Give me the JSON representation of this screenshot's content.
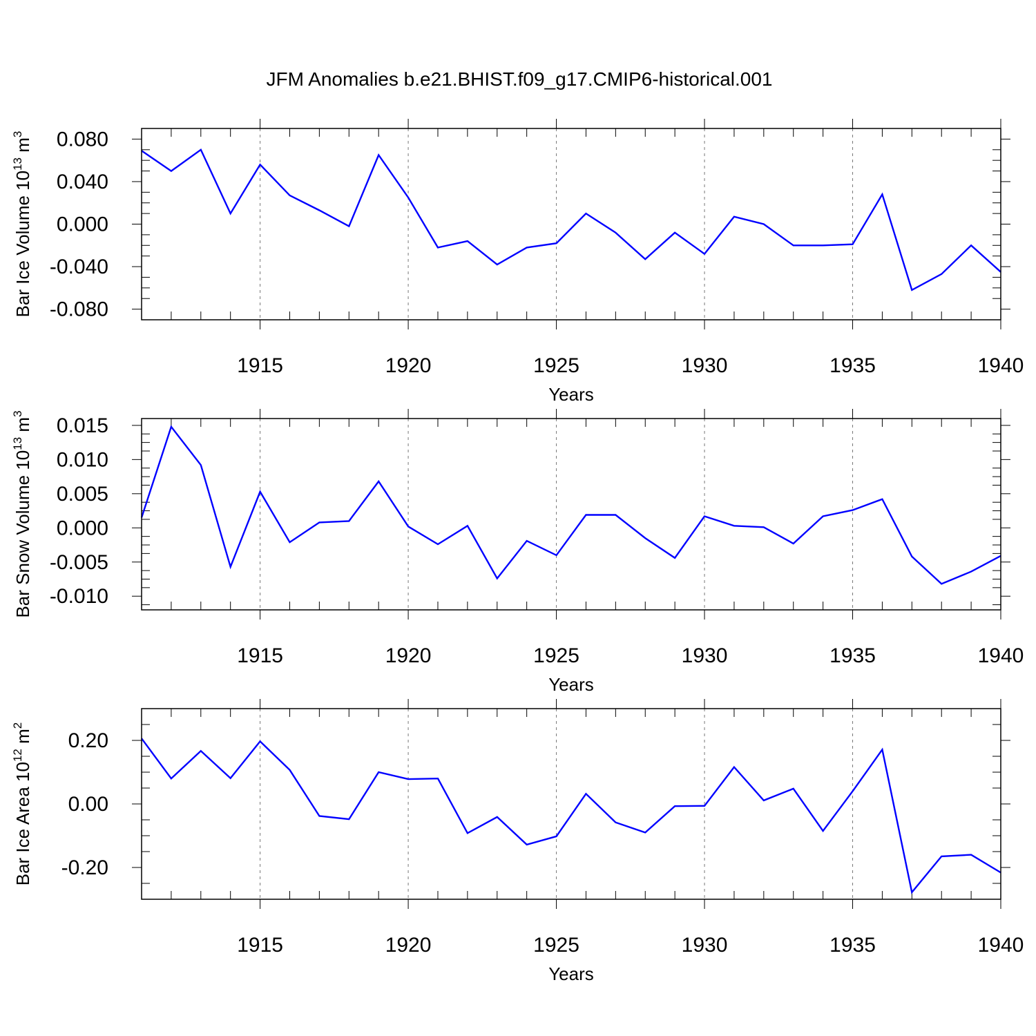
{
  "title": "JFM Anomalies b.e21.BHIST.f09_g17.CMIP6-historical.001",
  "colors": {
    "line": "#0000ff",
    "axis": "#000000",
    "grid": "#777777",
    "background": "#ffffff"
  },
  "chart_data": [
    {
      "type": "line",
      "ylabel": "Bar Ice Volume 10",
      "ylabel_power": "13",
      "ylabel_unit": "m",
      "ylabel_unit_power": "3",
      "xlabel": "Years",
      "xlim": [
        1911,
        1940
      ],
      "ylim": [
        -0.09,
        0.09
      ],
      "yticks": [
        -0.08,
        -0.04,
        0.0,
        0.04,
        0.08
      ],
      "ytick_labels": [
        "-0.080",
        "-0.040",
        "0.000",
        "0.040",
        "0.080"
      ],
      "xticks": [
        1915,
        1920,
        1925,
        1930,
        1935,
        1940
      ],
      "xtick_labels": [
        "1915",
        "1920",
        "1925",
        "1930",
        "1935",
        "1940"
      ],
      "grid": "vertical dashed at major x ticks",
      "series": [
        {
          "name": "Bar Ice Volume",
          "x": [
            1911,
            1912,
            1913,
            1914,
            1915,
            1916,
            1917,
            1918,
            1919,
            1920,
            1921,
            1922,
            1923,
            1924,
            1925,
            1926,
            1927,
            1928,
            1929,
            1930,
            1931,
            1932,
            1933,
            1934,
            1935,
            1936,
            1937,
            1938,
            1939,
            1940
          ],
          "values": [
            0.069,
            0.05,
            0.07,
            0.01,
            0.056,
            0.027,
            0.013,
            -0.002,
            0.065,
            0.025,
            -0.022,
            -0.016,
            -0.038,
            -0.022,
            -0.018,
            0.01,
            -0.008,
            -0.033,
            -0.008,
            -0.028,
            0.007,
            0.0,
            -0.02,
            -0.02,
            -0.019,
            0.028,
            -0.062,
            -0.047,
            -0.02,
            -0.045
          ]
        }
      ]
    },
    {
      "type": "line",
      "ylabel": "Bar Snow Volume 10",
      "ylabel_power": "13",
      "ylabel_unit": "m",
      "ylabel_unit_power": "3",
      "xlabel": "Years",
      "xlim": [
        1911,
        1940
      ],
      "ylim": [
        -0.012,
        0.016
      ],
      "yticks": [
        -0.01,
        -0.005,
        0.0,
        0.005,
        0.01,
        0.015
      ],
      "ytick_labels": [
        "-0.010",
        "-0.005",
        "0.000",
        "0.005",
        "0.010",
        "0.015"
      ],
      "xticks": [
        1915,
        1920,
        1925,
        1930,
        1935,
        1940
      ],
      "xtick_labels": [
        "1915",
        "1920",
        "1925",
        "1930",
        "1935",
        "1940"
      ],
      "grid": "vertical dashed at major x ticks",
      "series": [
        {
          "name": "Bar Snow Volume",
          "x": [
            1911,
            1912,
            1913,
            1914,
            1915,
            1916,
            1917,
            1918,
            1919,
            1920,
            1921,
            1922,
            1923,
            1924,
            1925,
            1926,
            1927,
            1928,
            1929,
            1930,
            1931,
            1932,
            1933,
            1934,
            1935,
            1936,
            1937,
            1938,
            1939,
            1940
          ],
          "values": [
            0.0015,
            0.0148,
            0.0092,
            -0.0057,
            0.0053,
            -0.0021,
            0.0008,
            0.001,
            0.0068,
            0.0002,
            -0.0024,
            0.0003,
            -0.0074,
            -0.0019,
            -0.004,
            0.0019,
            0.0019,
            -0.0015,
            -0.0044,
            0.0017,
            0.0003,
            0.0001,
            -0.0023,
            0.0017,
            0.0026,
            0.0042,
            -0.0042,
            -0.0082,
            -0.0064,
            -0.0041
          ]
        }
      ]
    },
    {
      "type": "line",
      "ylabel": "Bar Ice Area 10",
      "ylabel_power": "12",
      "ylabel_unit": "m",
      "ylabel_unit_power": "2",
      "xlabel": "Years",
      "xlim": [
        1911,
        1940
      ],
      "ylim": [
        -0.3,
        0.3
      ],
      "yticks": [
        -0.2,
        0.0,
        0.2
      ],
      "ytick_labels": [
        "-0.20",
        "0.00",
        "0.20"
      ],
      "xticks": [
        1915,
        1920,
        1925,
        1930,
        1935,
        1940
      ],
      "xtick_labels": [
        "1915",
        "1920",
        "1925",
        "1930",
        "1935",
        "1940"
      ],
      "grid": "vertical dashed at major x ticks",
      "series": [
        {
          "name": "Bar Ice Area",
          "x": [
            1911,
            1912,
            1913,
            1914,
            1915,
            1916,
            1917,
            1918,
            1919,
            1920,
            1921,
            1922,
            1923,
            1924,
            1925,
            1926,
            1927,
            1928,
            1929,
            1930,
            1931,
            1932,
            1933,
            1934,
            1935,
            1936,
            1937,
            1938,
            1939,
            1940
          ],
          "values": [
            0.206,
            0.08,
            0.167,
            0.081,
            0.197,
            0.107,
            -0.038,
            -0.048,
            0.1,
            0.078,
            0.08,
            -0.092,
            -0.041,
            -0.128,
            -0.102,
            0.032,
            -0.058,
            -0.09,
            -0.007,
            -0.006,
            0.116,
            0.011,
            0.048,
            -0.085,
            0.04,
            0.171,
            -0.278,
            -0.165,
            -0.16,
            -0.216
          ]
        }
      ]
    }
  ]
}
